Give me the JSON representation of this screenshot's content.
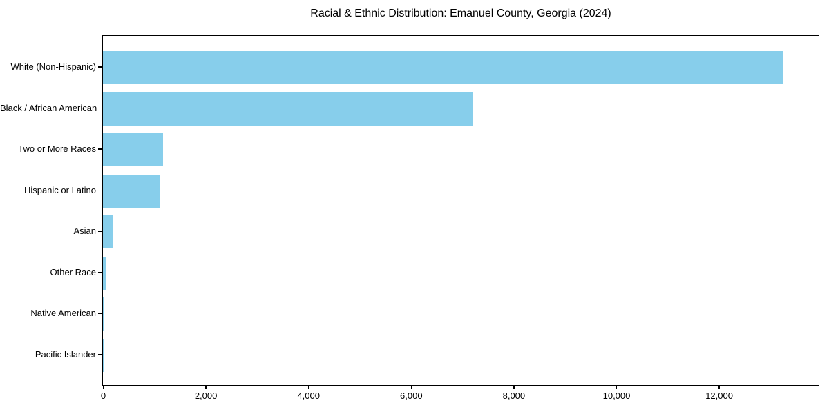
{
  "figure": {
    "background": "#ffffff"
  },
  "chart_data": {
    "type": "bar",
    "orientation": "horizontal",
    "title": "Racial & Ethnic Distribution: Emanuel County, Georgia (2024)",
    "categories": [
      "White (Non-Hispanic)",
      "Black / African American",
      "Two or More Races",
      "Hispanic or Latino",
      "Asian",
      "Other Race",
      "Native American",
      "Pacific Islander"
    ],
    "values": [
      13250,
      7200,
      1170,
      1110,
      190,
      50,
      15,
      5
    ],
    "xlabel": "",
    "ylabel": "",
    "xlim": [
      0,
      13930
    ],
    "xticks": [
      0,
      2000,
      4000,
      6000,
      8000,
      10000,
      12000
    ],
    "xtick_labels": [
      "0",
      "2,000",
      "4,000",
      "6,000",
      "8,000",
      "10,000",
      "12,000"
    ],
    "bar_color": "#87CEEB",
    "axis_color": "#000000",
    "text_color": "#000000",
    "grid": false,
    "legend": "none"
  }
}
